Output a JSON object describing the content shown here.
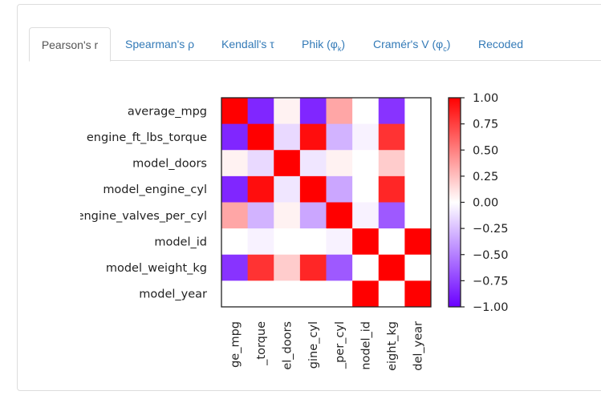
{
  "tabs": [
    {
      "label": "Pearson's r",
      "active": true
    },
    {
      "label": "Spearman's ρ",
      "active": false
    },
    {
      "label": "Kendall's τ",
      "active": false
    },
    {
      "label": "Phik (φ",
      "sub": "k",
      "suffix": ")",
      "active": false
    },
    {
      "label": "Cramér's V (φ",
      "sub": "c",
      "suffix": ")",
      "active": false
    },
    {
      "label": "Recoded",
      "active": false
    }
  ],
  "chart_data": {
    "type": "heatmap",
    "title": "",
    "variables": [
      "average_mpg",
      "engine_ft_lbs_torque",
      "model_doors",
      "model_engine_cyl",
      "engine_valves_per_cyl",
      "model_id",
      "model_weight_kg",
      "model_year"
    ],
    "row_labels_visible": [
      "average_mpg",
      "engine_ft_lbs_torque",
      "model_doors",
      "model_engine_cyl",
      "engine_valves_per_cyl",
      "model_id",
      "model_weight_kg",
      "model_year"
    ],
    "column_labels_visible": [
      "ge_mpg",
      "_torque",
      "el_doors",
      "gine_cyl",
      "_per_cyl",
      "nodel_id",
      "eight_kg",
      "del_year"
    ],
    "matrix": [
      [
        1.0,
        -0.85,
        0.05,
        -0.85,
        0.35,
        0.0,
        -0.8,
        0.0
      ],
      [
        -0.85,
        1.0,
        -0.15,
        0.95,
        -0.3,
        -0.05,
        0.8,
        0.0
      ],
      [
        0.05,
        -0.15,
        1.0,
        -0.1,
        0.05,
        0.0,
        0.2,
        0.0
      ],
      [
        -0.85,
        0.95,
        -0.1,
        1.0,
        -0.35,
        0.0,
        0.85,
        0.0
      ],
      [
        0.35,
        -0.3,
        0.05,
        -0.35,
        1.0,
        -0.05,
        -0.65,
        0.0
      ],
      [
        0.0,
        -0.05,
        0.0,
        0.0,
        -0.05,
        1.0,
        0.0,
        1.0
      ],
      [
        -0.8,
        0.8,
        0.2,
        0.85,
        -0.65,
        0.0,
        1.0,
        0.0
      ],
      [
        0.0,
        0.0,
        0.0,
        0.0,
        0.0,
        1.0,
        0.0,
        1.0
      ]
    ],
    "colormap": [
      "#6a00ff",
      "#ffffff",
      "#ff0000"
    ],
    "colorbar": {
      "range": [
        -1,
        1
      ],
      "ticks": [
        "1.00",
        "0.75",
        "0.50",
        "0.25",
        "0.00",
        "−0.25",
        "−0.50",
        "−0.75",
        "−1.00"
      ],
      "tick_values": [
        1.0,
        0.75,
        0.5,
        0.25,
        0.0,
        -0.25,
        -0.5,
        -0.75,
        -1.0
      ],
      "placement": "right"
    }
  }
}
